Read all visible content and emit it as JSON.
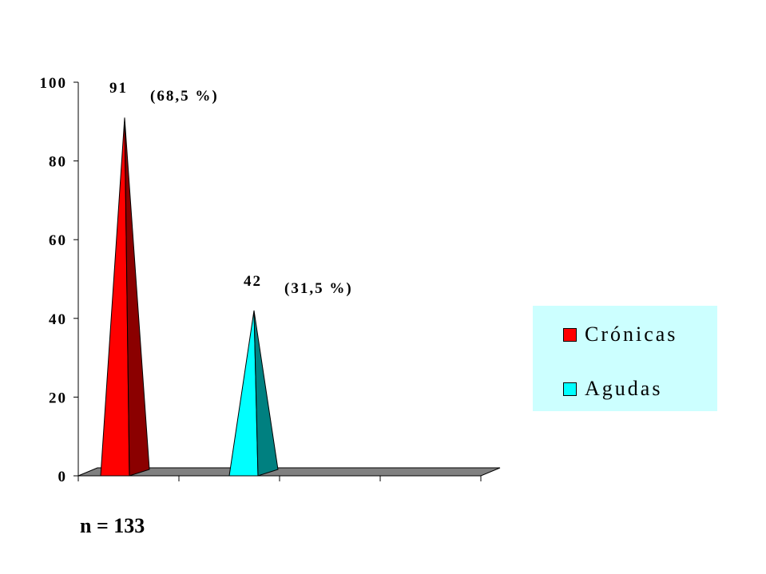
{
  "chart_data": {
    "type": "bar",
    "style": "3d-cone",
    "categories": [
      "Crónicas",
      "Agudas"
    ],
    "series": [
      {
        "values": [
          91,
          42
        ],
        "colors": [
          "#ff0000",
          "#00ffff"
        ],
        "shade_colors": [
          "#8b0000",
          "#008080"
        ]
      }
    ],
    "data_labels": [
      {
        "value": "91",
        "percent": "(68,5 %)"
      },
      {
        "value": "42",
        "percent": "(31,5 %)"
      }
    ],
    "ylim": [
      0,
      100
    ],
    "yticks": [
      "0",
      "20",
      "40",
      "60",
      "80",
      "100"
    ],
    "ytick_values": [
      0,
      20,
      40,
      60,
      80,
      100
    ],
    "x_slots": 4,
    "grid": false,
    "legend": {
      "placement": "right",
      "background": "#ccffff",
      "items": [
        {
          "label": "Crónicas",
          "color": "#ff0000"
        },
        {
          "label": "Agudas",
          "color": "#00ffff"
        }
      ]
    },
    "floor_color": "#808080"
  },
  "note": "n = 133"
}
